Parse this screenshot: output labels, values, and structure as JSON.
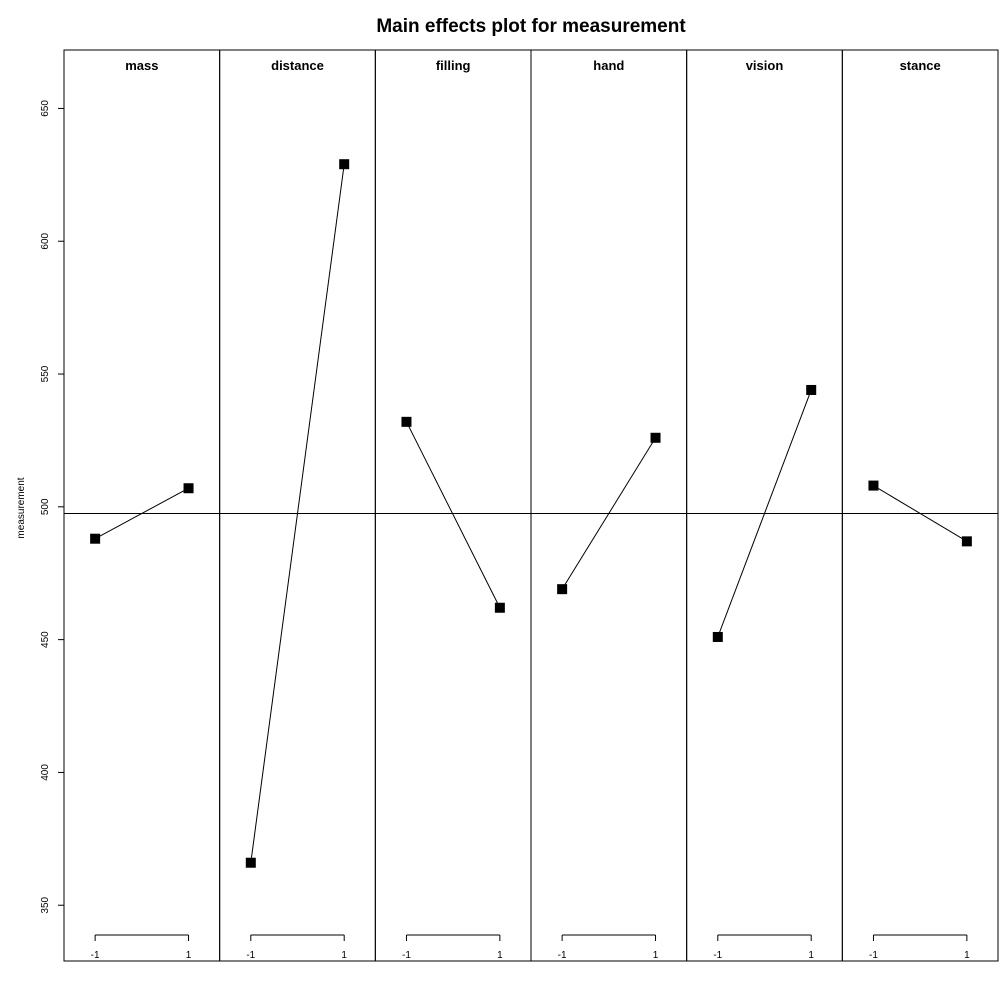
{
  "chart_data": {
    "type": "line",
    "title": "Main effects plot for measurement",
    "ylabel": "measurement",
    "ylim": [
      329,
      672
    ],
    "yticks": [
      350,
      400,
      450,
      500,
      550,
      600,
      650
    ],
    "grand_mean": 497.5,
    "levels": [
      "-1",
      "1"
    ],
    "facets": [
      {
        "name": "mass",
        "values": [
          488,
          507
        ]
      },
      {
        "name": "distance",
        "values": [
          366,
          629
        ]
      },
      {
        "name": "filling",
        "values": [
          532,
          462
        ]
      },
      {
        "name": "hand",
        "values": [
          469,
          526
        ]
      },
      {
        "name": "vision",
        "values": [
          451,
          544
        ]
      },
      {
        "name": "stance",
        "values": [
          508,
          487
        ]
      }
    ]
  }
}
